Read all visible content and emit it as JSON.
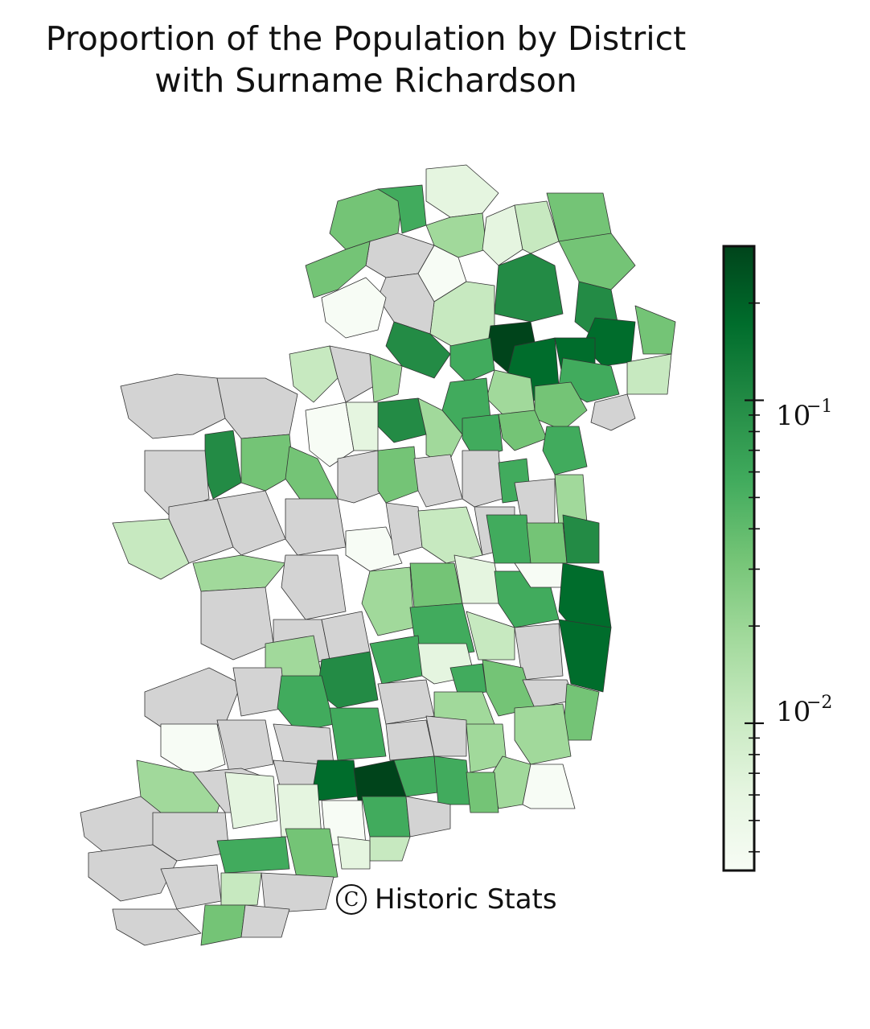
{
  "title_line1": "Proportion of the Population by District",
  "title_line2": "with Surname Richardson",
  "credit": {
    "symbol": "C",
    "text": "Historic Stats"
  },
  "colorbar": {
    "scale": "log",
    "range": [
      0.0035,
      0.3
    ],
    "major_ticks": [
      {
        "value": 0.1,
        "base": "10",
        "exponent": "−1"
      },
      {
        "value": 0.01,
        "base": "10",
        "exponent": "−2"
      }
    ],
    "colormap": [
      "#f7fcf5",
      "#e5f5e0",
      "#c7e9c0",
      "#a1d99b",
      "#74c476",
      "#41ab5d",
      "#238b45",
      "#006d2c",
      "#00441b"
    ],
    "no_data_color": "#d3d3d3"
  },
  "chart_data": {
    "type": "choropleth",
    "scale": "log",
    "no_data_color": "#d3d3d3"
  }
}
